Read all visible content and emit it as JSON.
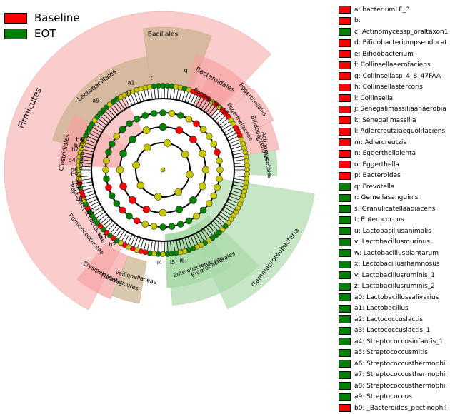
{
  "colors": {
    "baseline": "#ff0000",
    "eot": "#008000",
    "node_other": "#c8c800",
    "bg_red": "#f5a3a3",
    "bg_green": "#a8d8a8",
    "bg_tan": "#c8b08c"
  },
  "legend": [
    {
      "label": "Baseline",
      "color": "#ff0000"
    },
    {
      "label": "EOT",
      "color": "#008000"
    }
  ],
  "taxa_key": [
    {
      "label": "a: bacteriumLF_3",
      "color": "#ff0000"
    },
    {
      "label": "b:",
      "color": "#ff0000"
    },
    {
      "label": "c: Actinomycessp_oraltaxon1",
      "color": "#008000"
    },
    {
      "label": "d: Bifidobacteriumpseudocat",
      "color": "#ff0000"
    },
    {
      "label": "e: Bifidobacterium",
      "color": "#ff0000"
    },
    {
      "label": "f: Collinsellaaerofaciens",
      "color": "#ff0000"
    },
    {
      "label": "g: Collinsellasp_4_8_47FAA",
      "color": "#ff0000"
    },
    {
      "label": "h: Collinsellastercoris",
      "color": "#ff0000"
    },
    {
      "label": "i: Collinsella",
      "color": "#ff0000"
    },
    {
      "label": "j: Senegalimassiliaanaerobia",
      "color": "#ff0000"
    },
    {
      "label": "k: Senegalimassilia",
      "color": "#ff0000"
    },
    {
      "label": "l: Adlercreutziaequolifaciens",
      "color": "#ff0000"
    },
    {
      "label": "m: Adlercreutzia",
      "color": "#ff0000"
    },
    {
      "label": "n: Eggerthellalenta",
      "color": "#ff0000"
    },
    {
      "label": "o: Eggerthella",
      "color": "#ff0000"
    },
    {
      "label": "p: Bacteroides",
      "color": "#ff0000"
    },
    {
      "label": "q: Prevotella",
      "color": "#008000"
    },
    {
      "label": "r: Gemellasanguinis",
      "color": "#008000"
    },
    {
      "label": "s: Granulicatellaadiacens",
      "color": "#008000"
    },
    {
      "label": "t: Enterococcus",
      "color": "#008000"
    },
    {
      "label": "u: Lactobacillusanimalis",
      "color": "#008000"
    },
    {
      "label": "v: Lactobacillusmurinus",
      "color": "#008000"
    },
    {
      "label": "w: Lactobacillusplantarum",
      "color": "#008000"
    },
    {
      "label": "x: Lactobacillusrhamnosus",
      "color": "#008000"
    },
    {
      "label": "y: Lactobacillusruminis_1",
      "color": "#008000"
    },
    {
      "label": "z: Lactobacillusruminis_2",
      "color": "#008000"
    },
    {
      "label": "a0: Lactobacillussalivarius",
      "color": "#008000"
    },
    {
      "label": "a1: Lactobacillus",
      "color": "#008000"
    },
    {
      "label": "a2: Lactococcuslactis",
      "color": "#008000"
    },
    {
      "label": "a3: Lactococcuslactis_1",
      "color": "#008000"
    },
    {
      "label": "a4: Streptococcusinfantis_1",
      "color": "#008000"
    },
    {
      "label": "a5: Streptococcusmitis",
      "color": "#008000"
    },
    {
      "label": "a6: Streptococcusthermophil",
      "color": "#008000"
    },
    {
      "label": "a7: Streptococcusthermophil",
      "color": "#008000"
    },
    {
      "label": "a8: Streptococcusthermophil",
      "color": "#008000"
    },
    {
      "label": "a9: Streptococcus",
      "color": "#008000"
    },
    {
      "label": "b0: _Bacteroides_pectinophil",
      "color": "#ff0000"
    }
  ],
  "clade_labels": [
    "Firmicutes",
    "Lactobacillales",
    "Bacillales",
    "Bacteroidales",
    "Bacteroidaceae",
    "Eggerthellales",
    "Eggerthellaceae",
    "Bifidobacteriales",
    "Actinomycetales",
    "Gammaproteobacteria",
    "Enterobacterales",
    "Enterobacteriaceae",
    "Veillonellaceae",
    "Negativicutes",
    "Erysipelotrichia",
    "Ruminococcaceae",
    "Clostridiales",
    "Lachnospiraceae",
    "Peptostreptococcaceae"
  ],
  "sector_tags": [
    "a1",
    "a9",
    "a7",
    "b2",
    "b4",
    "b6",
    "b9",
    "c5",
    "c3",
    "c8",
    "b8",
    "b7",
    "c2",
    "c4",
    "g3",
    "h3",
    "h2",
    "t",
    "q",
    "p",
    "e",
    "i6",
    "i5",
    "i4"
  ]
}
